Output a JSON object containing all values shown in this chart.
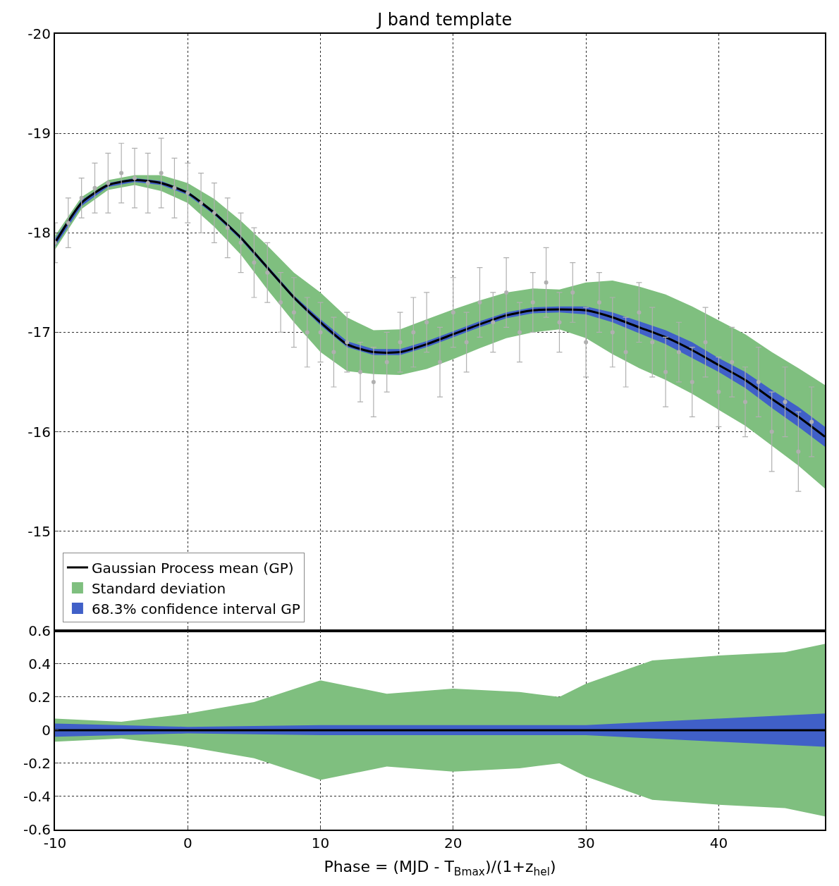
{
  "chart_data": [
    {
      "type": "line",
      "title": "J band template",
      "xlim": [
        -10,
        48
      ],
      "xticks": [
        -10,
        0,
        10,
        20,
        30,
        40
      ],
      "ylim": [
        -14,
        -20
      ],
      "yticks": [
        -20,
        -19,
        -18,
        -17,
        -16,
        -15
      ],
      "tick_labels": "y",
      "grid": true,
      "legend": "bottom left",
      "series": [
        {
          "type": "scatter",
          "color": "#b0b0b0",
          "x": [
            -10,
            -9,
            -8,
            -7,
            -6,
            -5,
            -4,
            -3,
            -2,
            -1,
            0,
            1,
            2,
            3,
            4,
            5,
            6,
            7,
            8,
            9,
            10,
            11,
            12,
            13,
            14,
            15,
            16,
            17,
            18,
            19,
            20,
            21,
            22,
            23,
            24,
            25,
            26,
            27,
            28,
            29,
            30,
            31,
            32,
            33,
            34,
            35,
            36,
            37,
            38,
            39,
            40,
            41,
            42,
            43,
            44,
            45,
            46,
            47
          ],
          "values": [
            -17.9,
            -18.1,
            -18.35,
            -18.45,
            -18.5,
            -18.6,
            -18.55,
            -18.5,
            -18.6,
            -18.45,
            -18.4,
            -18.3,
            -18.2,
            -18.05,
            -17.9,
            -17.7,
            -17.6,
            -17.3,
            -17.2,
            -17.0,
            -17.0,
            -16.8,
            -16.9,
            -16.6,
            -16.5,
            -16.7,
            -16.9,
            -17.0,
            -17.1,
            -16.7,
            -17.2,
            -16.9,
            -17.3,
            -17.1,
            -17.4,
            -17.0,
            -17.3,
            -17.5,
            -17.1,
            -17.4,
            -16.9,
            -17.3,
            -17.0,
            -16.8,
            -17.2,
            -16.9,
            -16.6,
            -16.8,
            -16.5,
            -16.9,
            -16.4,
            -16.7,
            -16.3,
            -16.5,
            -16.0,
            -16.3,
            -15.8,
            -16.1
          ],
          "errors": [
            0.2,
            0.25,
            0.2,
            0.25,
            0.3,
            0.3,
            0.3,
            0.3,
            0.35,
            0.3,
            0.3,
            0.3,
            0.3,
            0.3,
            0.3,
            0.35,
            0.3,
            0.3,
            0.35,
            0.35,
            0.3,
            0.35,
            0.3,
            0.3,
            0.35,
            0.3,
            0.3,
            0.35,
            0.3,
            0.35,
            0.35,
            0.3,
            0.35,
            0.3,
            0.35,
            0.3,
            0.3,
            0.35,
            0.3,
            0.3,
            0.35,
            0.3,
            0.35,
            0.35,
            0.3,
            0.35,
            0.35,
            0.3,
            0.35,
            0.35,
            0.35,
            0.35,
            0.35,
            0.35,
            0.4,
            0.35,
            0.4,
            0.35
          ]
        },
        {
          "name": "Standard deviation",
          "color": "#7fbf7f",
          "x": [
            -10,
            -8,
            -6,
            -4,
            -2,
            0,
            2,
            4,
            6,
            8,
            10,
            12,
            14,
            16,
            18,
            20,
            22,
            24,
            26,
            28,
            30,
            32,
            34,
            36,
            38,
            40,
            42,
            44,
            46,
            48
          ],
          "values": [
            null,
            null,
            null,
            null,
            null,
            null,
            null,
            null,
            null,
            null,
            null,
            null,
            null,
            null,
            null,
            null,
            null,
            null,
            null,
            null,
            null,
            null,
            null,
            null,
            null,
            null,
            null,
            null,
            null,
            null
          ],
          "lower": [
            -17.83,
            -18.24,
            -18.43,
            -18.48,
            -18.42,
            -18.3,
            -18.06,
            -17.78,
            -17.43,
            -17.1,
            -16.8,
            -16.61,
            -16.58,
            -16.57,
            -16.63,
            -16.73,
            -16.84,
            -16.94,
            -17.0,
            -17.03,
            -16.94,
            -16.78,
            -16.64,
            -16.52,
            -16.38,
            -16.22,
            -16.06,
            -15.86,
            -15.66,
            -15.43
          ],
          "upper": [
            -17.97,
            -18.36,
            -18.53,
            -18.58,
            -18.58,
            -18.5,
            -18.34,
            -18.12,
            -17.87,
            -17.6,
            -17.4,
            -17.15,
            -17.02,
            -17.03,
            -17.13,
            -17.23,
            -17.32,
            -17.4,
            -17.44,
            -17.43,
            -17.5,
            -17.52,
            -17.46,
            -17.38,
            -17.26,
            -17.12,
            -16.98,
            -16.8,
            -16.64,
            -16.47
          ]
        },
        {
          "name": "68.3% confidence interval GP",
          "color": "#4060c8",
          "x": [
            -10,
            -8,
            -6,
            -4,
            -2,
            0,
            2,
            4,
            6,
            8,
            10,
            12,
            14,
            16,
            18,
            20,
            22,
            24,
            26,
            28,
            30,
            32,
            34,
            36,
            38,
            40,
            42,
            44,
            46,
            48
          ],
          "values": [
            null,
            null,
            null,
            null,
            null,
            null,
            null,
            null,
            null,
            null,
            null,
            null,
            null,
            null,
            null,
            null,
            null,
            null,
            null,
            null,
            null,
            null,
            null,
            null,
            null,
            null,
            null,
            null,
            null,
            null
          ],
          "lower": [
            -17.86,
            -18.27,
            -18.46,
            -18.51,
            -18.48,
            -18.38,
            -18.18,
            -17.93,
            -17.63,
            -17.33,
            -17.07,
            -16.85,
            -16.77,
            -16.77,
            -16.85,
            -16.95,
            -17.05,
            -17.14,
            -17.19,
            -17.2,
            -17.18,
            -17.1,
            -16.99,
            -16.88,
            -16.74,
            -16.6,
            -16.44,
            -16.24,
            -16.05,
            -15.85
          ],
          "upper": [
            -17.94,
            -18.33,
            -18.5,
            -18.55,
            -18.52,
            -18.42,
            -18.22,
            -17.97,
            -17.67,
            -17.37,
            -17.13,
            -16.91,
            -16.83,
            -16.83,
            -16.91,
            -17.01,
            -17.11,
            -17.2,
            -17.25,
            -17.26,
            -17.26,
            -17.2,
            -17.11,
            -17.02,
            -16.9,
            -16.74,
            -16.6,
            -16.42,
            -16.25,
            -16.05
          ]
        },
        {
          "type": "line",
          "name": "Gaussian Process mean (GP)",
          "color": "#000000",
          "x": [
            -10,
            -8,
            -6,
            -4,
            -2,
            0,
            2,
            4,
            6,
            8,
            10,
            12,
            14,
            16,
            18,
            20,
            22,
            24,
            26,
            28,
            30,
            32,
            34,
            36,
            38,
            40,
            42,
            44,
            46,
            48
          ],
          "values": [
            -17.9,
            -18.3,
            -18.48,
            -18.53,
            -18.5,
            -18.4,
            -18.2,
            -17.95,
            -17.65,
            -17.35,
            -17.1,
            -16.88,
            -16.8,
            -16.8,
            -16.88,
            -16.98,
            -17.08,
            -17.17,
            -17.22,
            -17.23,
            -17.22,
            -17.15,
            -17.05,
            -16.95,
            -16.82,
            -16.67,
            -16.52,
            -16.33,
            -16.15,
            -15.95
          ]
        }
      ]
    },
    {
      "type": "line",
      "xlabel": "Phase = (MJD - T$_{Bmax}$)/(1+z$_{hel}$)",
      "xlim": [
        -10,
        48
      ],
      "xticks": [
        -10,
        0,
        10,
        20,
        30,
        40
      ],
      "ylim": [
        -0.6,
        0.6
      ],
      "yticks": [
        -0.6,
        -0.4,
        -0.2,
        0.0,
        0.2,
        0.4,
        0.6
      ],
      "grid": true,
      "series": [
        {
          "color": "#7fbf7f",
          "x": [
            -10,
            -5,
            0,
            5,
            10,
            15,
            20,
            25,
            28,
            30,
            35,
            40,
            45,
            48
          ],
          "values": [
            null,
            null,
            null,
            null,
            null,
            null,
            null,
            null,
            null,
            null,
            null,
            null,
            null,
            null
          ],
          "lower": [
            -0.07,
            -0.05,
            -0.1,
            -0.17,
            -0.3,
            -0.22,
            -0.25,
            -0.23,
            -0.2,
            -0.28,
            -0.42,
            -0.45,
            -0.47,
            -0.52
          ],
          "upper": [
            0.07,
            0.05,
            0.1,
            0.17,
            0.3,
            0.22,
            0.25,
            0.23,
            0.2,
            0.28,
            0.42,
            0.45,
            0.47,
            0.52
          ]
        },
        {
          "color": "#4060c8",
          "x": [
            -10,
            0,
            10,
            20,
            30,
            40,
            48
          ],
          "values": [
            null,
            null,
            null,
            null,
            null,
            null,
            null
          ],
          "lower": [
            -0.04,
            -0.02,
            -0.03,
            -0.03,
            -0.03,
            -0.07,
            -0.1
          ],
          "upper": [
            0.04,
            0.02,
            0.03,
            0.03,
            0.03,
            0.07,
            0.1
          ]
        },
        {
          "type": "line",
          "color": "#000000",
          "x": [
            -10,
            48
          ],
          "values": [
            0.0,
            0.0
          ]
        }
      ]
    }
  ]
}
